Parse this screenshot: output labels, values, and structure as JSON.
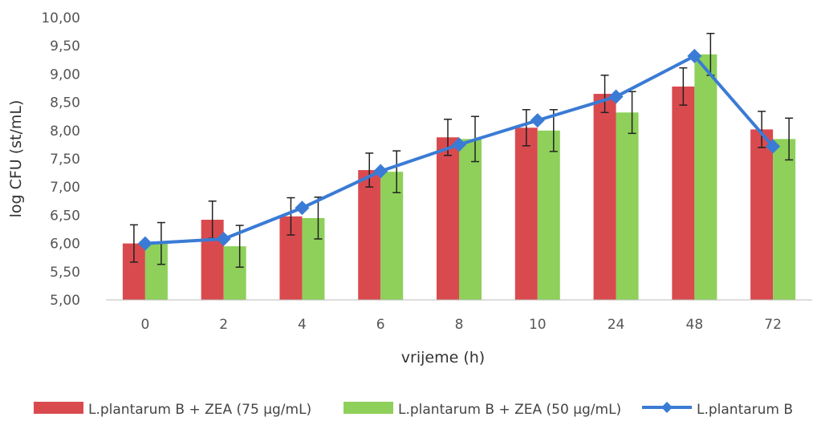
{
  "chart_data": {
    "type": "bar",
    "categories": [
      "0",
      "2",
      "4",
      "6",
      "8",
      "10",
      "24",
      "48",
      "72"
    ],
    "series": [
      {
        "name": "L.plantarum B + ZEA (75 µg/mL)",
        "kind": "bar",
        "color": "#d94a4f",
        "values": [
          6.0,
          6.42,
          6.48,
          7.3,
          7.88,
          8.05,
          8.65,
          8.78,
          8.02
        ],
        "errors": [
          0.33,
          0.33,
          0.33,
          0.3,
          0.32,
          0.32,
          0.33,
          0.33,
          0.32
        ]
      },
      {
        "name": "L.plantarum B + ZEA (50 µg/mL)",
        "kind": "bar",
        "color": "#8ed05a",
        "values": [
          6.0,
          5.95,
          6.45,
          7.27,
          7.85,
          8.0,
          8.32,
          9.35,
          7.85
        ],
        "errors": [
          0.37,
          0.37,
          0.37,
          0.37,
          0.4,
          0.37,
          0.37,
          0.37,
          0.37
        ]
      },
      {
        "name": "L.plantarum B",
        "kind": "line",
        "color": "#3a7bd5",
        "values": [
          6.0,
          6.08,
          6.63,
          7.28,
          7.75,
          8.18,
          8.6,
          9.32,
          7.72
        ]
      }
    ],
    "xlabel": "vrijeme (h)",
    "ylabel": "log CFU (st/mL)",
    "ylim": [
      5.0,
      10.0
    ],
    "yticks": [
      "5,00",
      "5,50",
      "6,00",
      "6,50",
      "7,00",
      "7,50",
      "8,00",
      "8,50",
      "9,00",
      "9,50",
      "10,00"
    ],
    "grid": false,
    "legend_position": "bottom"
  }
}
